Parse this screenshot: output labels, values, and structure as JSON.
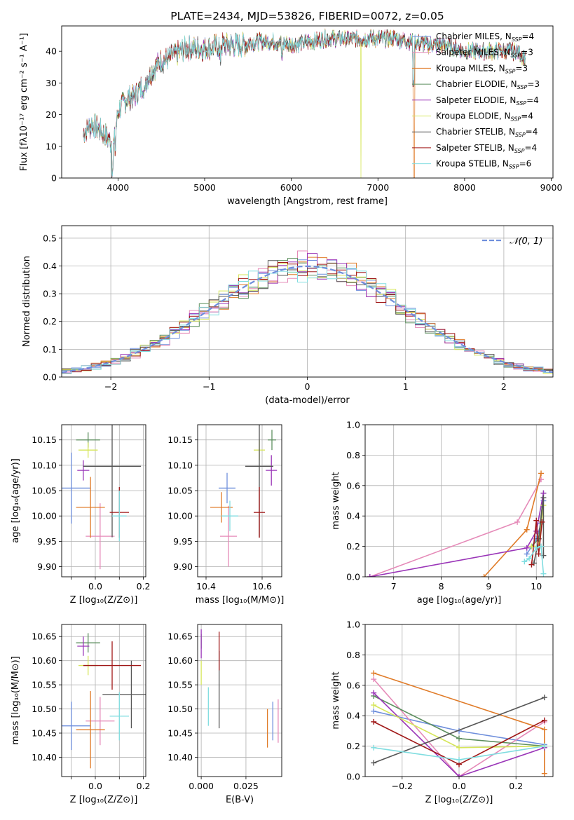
{
  "colors": {
    "chabrier_miles": "#6f8fdc",
    "salpeter_miles": "#e58ab8",
    "kroupa_miles": "#e07b28",
    "chabrier_elodie": "#5d8f5f",
    "salpeter_elodie": "#9a35b8",
    "kroupa_elodie": "#d6e65a",
    "chabrier_stelib": "#555555",
    "salpeter_stelib": "#a01818",
    "kroupa_stelib": "#80dde0",
    "gauss": "#6f8fdc"
  },
  "chart_data": [
    {
      "id": "spectrum",
      "type": "line",
      "title": "PLATE=2434, MJD=53826, FIBERID=0072, z=0.05",
      "xlabel": "wavelength [Angstrom, rest frame]",
      "ylabel": "Flux [fλ10⁻¹⁷ erg cm⁻² s⁻¹ A⁻¹]",
      "xlim": [
        3350,
        9020
      ],
      "ylim": [
        0,
        48
      ],
      "xticks": [
        4000,
        5000,
        6000,
        7000,
        8000,
        9000
      ],
      "yticks": [
        0,
        10,
        20,
        30,
        40
      ],
      "continuum_x": [
        3600,
        3700,
        3800,
        3900,
        3950,
        4000,
        4100,
        4200,
        4300,
        4400,
        4500,
        4600,
        4800,
        5000,
        5200,
        5400,
        5600,
        5800,
        6000,
        6200,
        6400,
        6600,
        6800,
        7000,
        7200,
        7400,
        7600,
        7800,
        8000,
        8200,
        8400,
        8600,
        8700
      ],
      "continuum_y": [
        14,
        17,
        15,
        12,
        10,
        21,
        25,
        26,
        30,
        34,
        37,
        38,
        41,
        41,
        42,
        42,
        43,
        43,
        42,
        43,
        44,
        44,
        44,
        44,
        44,
        43,
        42,
        42,
        40,
        40,
        40,
        40,
        38
      ],
      "legend_position": "top-right",
      "legend": [
        {
          "pre": "Chabrier MILES, N",
          "sub": "SSP",
          "post": "=4"
        },
        {
          "pre": "Salpeter MILES, N",
          "sub": "SSP",
          "post": "=3"
        },
        {
          "pre": "Kroupa MILES, N",
          "sub": "SSP",
          "post": "=3"
        },
        {
          "pre": "Chabrier ELODIE, N",
          "sub": "SSP",
          "post": "=3"
        },
        {
          "pre": "Salpeter ELODIE, N",
          "sub": "SSP",
          "post": "=4"
        },
        {
          "pre": "Kroupa ELODIE, N",
          "sub": "SSP",
          "post": "=4"
        },
        {
          "pre": "Chabrier STELIB, N",
          "sub": "SSP",
          "post": "=4"
        },
        {
          "pre": "Salpeter STELIB, N",
          "sub": "SSP",
          "post": "=4"
        },
        {
          "pre": "Kroupa STELIB, N",
          "sub": "SSP",
          "post": "=6"
        }
      ]
    },
    {
      "id": "residuals",
      "type": "bar",
      "xlabel": "(data-model)/error",
      "ylabel": "Normed distribution",
      "xlim": [
        -2.5,
        2.5
      ],
      "ylim": [
        0,
        0.545
      ],
      "xticks": [
        -2,
        -1,
        0,
        1,
        2
      ],
      "yticks": [
        0.0,
        0.1,
        0.2,
        0.3,
        0.4,
        0.5
      ],
      "grid": true,
      "legend_position": "top-right",
      "legend_label": "𝒩(0, 1)",
      "bin_width": 0.1,
      "bin_start": -2.5
    },
    {
      "id": "age_vs_Z",
      "type": "scatter",
      "xlabel": "Z [log₁₀(Z/Z⊙)]",
      "ylabel": "age  [log₁₀(age/yr)]",
      "xlim": [
        -0.14,
        0.21
      ],
      "ylim": [
        9.88,
        10.18
      ],
      "xticks": [
        -0.1,
        0.0,
        0.1,
        0.2
      ],
      "xticklabels": [
        "",
        "0.0",
        "",
        "0.2"
      ],
      "yticks": [
        9.9,
        9.95,
        10.0,
        10.05,
        10.1,
        10.15
      ],
      "grid": true,
      "points": [
        {
          "key": "chabrier_miles",
          "x": -0.1,
          "y": 10.055,
          "xerr": 0.08,
          "yerr": 0.07
        },
        {
          "key": "salpeter_miles",
          "x": 0.02,
          "y": 9.96,
          "xerr": 0.06,
          "yerr": 0.065
        },
        {
          "key": "kroupa_miles",
          "x": -0.02,
          "y": 10.017,
          "xerr": 0.06,
          "yerr": 0.06
        },
        {
          "key": "chabrier_elodie",
          "x": -0.03,
          "y": 10.15,
          "xerr": 0.05,
          "yerr": 0.015
        },
        {
          "key": "salpeter_elodie",
          "x": -0.05,
          "y": 10.09,
          "xerr": 0.025,
          "yerr": 0.02
        },
        {
          "key": "kroupa_elodie",
          "x": -0.03,
          "y": 10.13,
          "xerr": 0.04,
          "yerr": 0.015
        },
        {
          "key": "chabrier_stelib",
          "x": 0.07,
          "y": 10.098,
          "xerr": 0.12,
          "yerr": 0.14
        },
        {
          "key": "salpeter_stelib",
          "x": 0.1,
          "y": 10.007,
          "xerr": 0.04,
          "yerr": 0.05
        },
        {
          "key": "kroupa_stelib",
          "x": 0.1,
          "y": 10.0,
          "xerr": 0.03,
          "yerr": 0.05
        }
      ]
    },
    {
      "id": "age_vs_mass",
      "type": "scatter",
      "xlabel": "mass [log₁₀(M/M⊙)]",
      "ylabel": "",
      "xlim": [
        10.37,
        10.67
      ],
      "ylim": [
        9.88,
        10.18
      ],
      "xticks": [
        10.4,
        10.6
      ],
      "xticklabels": [
        "10.4",
        "10.6"
      ],
      "yticks": [
        9.9,
        9.95,
        10.0,
        10.05,
        10.1,
        10.15
      ],
      "grid": true,
      "points": [
        {
          "key": "chabrier_miles",
          "x": 10.475,
          "y": 10.055,
          "xerr": 0.03,
          "yerr": 0.03
        },
        {
          "key": "salpeter_miles",
          "x": 10.48,
          "y": 9.96,
          "xerr": 0.03,
          "yerr": 0.06
        },
        {
          "key": "kroupa_miles",
          "x": 10.455,
          "y": 10.017,
          "xerr": 0.04,
          "yerr": 0.03
        },
        {
          "key": "chabrier_elodie",
          "x": 10.635,
          "y": 10.15,
          "xerr": 0.015,
          "yerr": 0.02
        },
        {
          "key": "salpeter_elodie",
          "x": 10.633,
          "y": 10.09,
          "xerr": 0.02,
          "yerr": 0.03
        },
        {
          "key": "kroupa_elodie",
          "x": 10.59,
          "y": 10.13,
          "xerr": 0.02,
          "yerr": 0.02
        },
        {
          "key": "chabrier_stelib",
          "x": 10.59,
          "y": 10.098,
          "xerr": 0.05,
          "yerr": 0.14
        },
        {
          "key": "salpeter_stelib",
          "x": 10.59,
          "y": 10.007,
          "xerr": 0.02,
          "yerr": 0.05
        },
        {
          "key": "kroupa_stelib",
          "x": 10.485,
          "y": 10.0,
          "xerr": 0.03,
          "yerr": 0.03
        }
      ]
    },
    {
      "id": "weight_vs_age",
      "type": "line",
      "xlabel": "age  [log₁₀(age/yr)]",
      "ylabel": "mass weight",
      "xlim": [
        6.4,
        10.35
      ],
      "ylim": [
        0,
        1.0
      ],
      "xticks": [
        7,
        8,
        9,
        10
      ],
      "yticks": [
        0.0,
        0.2,
        0.4,
        0.6,
        0.8,
        1.0
      ],
      "grid": true,
      "series": [
        {
          "key": "chabrier_miles",
          "x": [
            9.8,
            10.0,
            10.1,
            10.15
          ],
          "y": [
            0.15,
            0.25,
            0.35,
            0.5
          ]
        },
        {
          "key": "salpeter_miles",
          "x": [
            6.5,
            9.6,
            10.1
          ],
          "y": [
            0.0,
            0.36,
            0.64
          ]
        },
        {
          "key": "kroupa_miles",
          "x": [
            8.9,
            9.8,
            10.1
          ],
          "y": [
            0.0,
            0.31,
            0.68
          ]
        },
        {
          "key": "chabrier_elodie",
          "x": [
            9.9,
            10.05,
            10.15
          ],
          "y": [
            0.2,
            0.25,
            0.55
          ]
        },
        {
          "key": "salpeter_elodie",
          "x": [
            6.5,
            9.8,
            10.0,
            10.15
          ],
          "y": [
            0.0,
            0.19,
            0.3,
            0.55
          ]
        },
        {
          "key": "kroupa_elodie",
          "x": [
            9.9,
            10.05,
            10.15
          ],
          "y": [
            0.2,
            0.2,
            0.47
          ]
        },
        {
          "key": "chabrier_stelib",
          "x": [
            9.95,
            10.05,
            10.15,
            10.15
          ],
          "y": [
            0.09,
            0.25,
            0.52,
            0.14
          ]
        },
        {
          "key": "salpeter_stelib",
          "x": [
            9.9,
            10.0,
            10.05,
            10.12
          ],
          "y": [
            0.08,
            0.37,
            0.15,
            0.36
          ]
        },
        {
          "key": "kroupa_stelib",
          "x": [
            9.75,
            9.85,
            10.0,
            10.1,
            10.15
          ],
          "y": [
            0.1,
            0.12,
            0.19,
            0.2,
            0.02
          ]
        }
      ]
    },
    {
      "id": "mass_vs_Z",
      "type": "scatter",
      "xlabel": "Z [log₁₀(Z/Z⊙)]",
      "ylabel": "mass [log₁₀(M/M⊙)]",
      "xlim": [
        -0.14,
        0.21
      ],
      "ylim": [
        10.36,
        10.675
      ],
      "xticks": [
        -0.1,
        0.0,
        0.1,
        0.2
      ],
      "xticklabels": [
        "",
        "0.0",
        "",
        "0.2"
      ],
      "yticks": [
        10.4,
        10.45,
        10.5,
        10.55,
        10.6,
        10.65
      ],
      "grid": true,
      "points": [
        {
          "key": "chabrier_miles",
          "x": -0.1,
          "y": 10.465,
          "xerr": 0.08,
          "yerr": 0.05
        },
        {
          "key": "salpeter_miles",
          "x": 0.02,
          "y": 10.475,
          "xerr": 0.06,
          "yerr": 0.05
        },
        {
          "key": "kroupa_miles",
          "x": -0.02,
          "y": 10.457,
          "xerr": 0.06,
          "yerr": 0.08
        },
        {
          "key": "chabrier_elodie",
          "x": -0.03,
          "y": 10.637,
          "xerr": 0.05,
          "yerr": 0.02
        },
        {
          "key": "salpeter_elodie",
          "x": -0.05,
          "y": 10.63,
          "xerr": 0.025,
          "yerr": 0.02
        },
        {
          "key": "kroupa_elodie",
          "x": -0.03,
          "y": 10.59,
          "xerr": 0.04,
          "yerr": 0.02
        },
        {
          "key": "chabrier_stelib",
          "x": 0.15,
          "y": 10.53,
          "xerr": 0.12,
          "yerr": 0.07
        },
        {
          "key": "salpeter_stelib",
          "x": 0.07,
          "y": 10.59,
          "xerr": 0.12,
          "yerr": 0.05
        },
        {
          "key": "kroupa_stelib",
          "x": 0.1,
          "y": 10.485,
          "xerr": 0.04,
          "yerr": 0.05
        }
      ]
    },
    {
      "id": "mass_vs_ebv",
      "type": "scatter",
      "xlabel": "E(B-V)",
      "ylabel": "",
      "xlim": [
        -0.002,
        0.045
      ],
      "ylim": [
        10.36,
        10.675
      ],
      "xticks": [
        0.0,
        0.025
      ],
      "xticklabels": [
        "0.000",
        "0.025"
      ],
      "yticks": [
        10.4,
        10.45,
        10.5,
        10.55,
        10.6,
        10.65
      ],
      "grid": true,
      "points": [
        {
          "key": "chabrier_miles",
          "x": 0.04,
          "y": 10.475,
          "xerr": 0,
          "yerr": 0.04
        },
        {
          "key": "salpeter_miles",
          "x": 0.043,
          "y": 10.475,
          "xerr": 0,
          "yerr": 0.045
        },
        {
          "key": "kroupa_miles",
          "x": 0.037,
          "y": 10.46,
          "xerr": 0,
          "yerr": 0.04
        },
        {
          "key": "chabrier_elodie",
          "x": 0.0,
          "y": 10.64,
          "xerr": 0,
          "yerr": 0.015
        },
        {
          "key": "salpeter_elodie",
          "x": 0.0,
          "y": 10.635,
          "xerr": 0,
          "yerr": 0.03
        },
        {
          "key": "kroupa_elodie",
          "x": 0.0,
          "y": 10.575,
          "xerr": 0,
          "yerr": 0.025
        },
        {
          "key": "chabrier_stelib",
          "x": 0.01,
          "y": 10.54,
          "xerr": 0,
          "yerr": 0.08
        },
        {
          "key": "salpeter_stelib",
          "x": 0.01,
          "y": 10.62,
          "xerr": 0,
          "yerr": 0.04
        },
        {
          "key": "kroupa_stelib",
          "x": 0.004,
          "y": 10.505,
          "xerr": 0,
          "yerr": 0.04
        }
      ]
    },
    {
      "id": "weight_vs_Z",
      "type": "line",
      "xlabel": "Z [log₁₀(Z/Z⊙)]",
      "ylabel": "mass weight",
      "xlim": [
        -0.33,
        0.33
      ],
      "ylim": [
        0,
        1.0
      ],
      "xticks": [
        -0.2,
        0.0,
        0.2
      ],
      "yticks": [
        0.0,
        0.2,
        0.4,
        0.6,
        0.8,
        1.0
      ],
      "grid": true,
      "series": [
        {
          "key": "chabrier_miles",
          "x": [
            -0.3,
            0.0,
            0.3
          ],
          "y": [
            0.43,
            0.3,
            0.21
          ]
        },
        {
          "key": "salpeter_miles",
          "x": [
            -0.3,
            0.0,
            0.3
          ],
          "y": [
            0.64,
            0.0,
            0.36
          ]
        },
        {
          "key": "kroupa_miles",
          "x": [
            -0.3,
            0.3,
            0.3
          ],
          "y": [
            0.68,
            0.31,
            0.02
          ]
        },
        {
          "key": "chabrier_elodie",
          "x": [
            -0.3,
            0.0,
            0.3
          ],
          "y": [
            0.53,
            0.25,
            0.2
          ]
        },
        {
          "key": "salpeter_elodie",
          "x": [
            -0.3,
            0.0,
            0.3
          ],
          "y": [
            0.55,
            0.0,
            0.19
          ]
        },
        {
          "key": "kroupa_elodie",
          "x": [
            -0.3,
            0.0,
            0.3
          ],
          "y": [
            0.47,
            0.19,
            0.2
          ]
        },
        {
          "key": "chabrier_stelib",
          "x": [
            -0.3,
            0.3
          ],
          "y": [
            0.09,
            0.52
          ]
        },
        {
          "key": "salpeter_stelib",
          "x": [
            -0.3,
            0.0,
            0.3
          ],
          "y": [
            0.36,
            0.08,
            0.37
          ]
        },
        {
          "key": "kroupa_stelib",
          "x": [
            -0.3,
            0.0,
            0.3
          ],
          "y": [
            0.19,
            0.11,
            0.2
          ]
        }
      ]
    }
  ]
}
